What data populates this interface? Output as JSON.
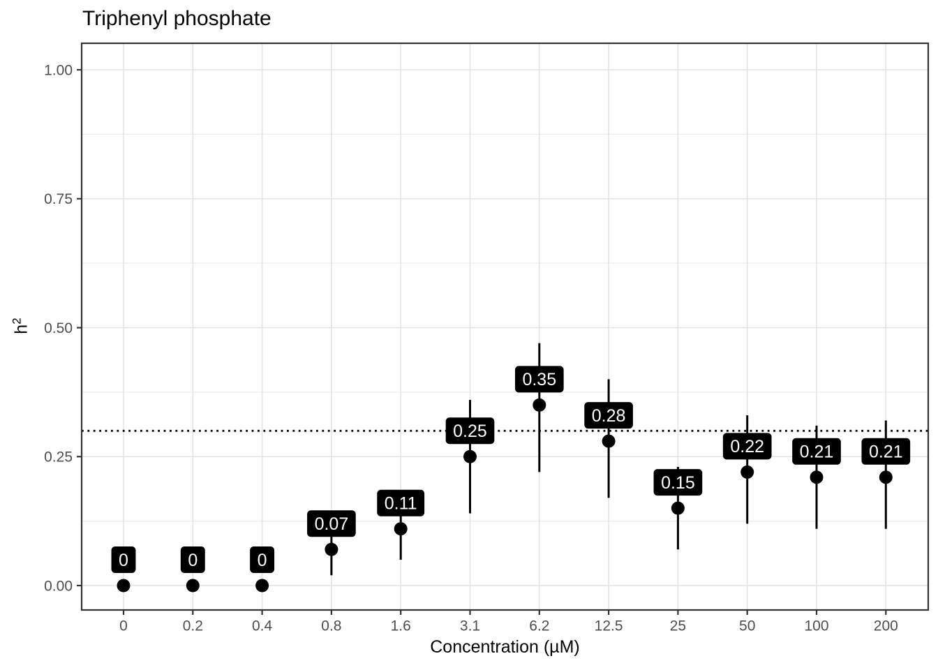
{
  "figure": {
    "title": "Triphenyl phosphate",
    "x_axis_title": "Concentration (µM)",
    "y_axis_title_base": "h",
    "y_axis_title_superscript": "2"
  },
  "colors": {
    "background": "#ffffff",
    "point": "#000000",
    "error_bar": "#000000",
    "label_box_fill": "#000000",
    "label_text": "#ffffff",
    "grid_major": "#e4e4e4",
    "grid_minor": "#ededed",
    "panel_border": "#333333",
    "tick_mark": "#333333",
    "tick_label": "#4d4d4d",
    "reference_line": "#000000"
  },
  "chart_data": {
    "type": "scatter",
    "title": "Triphenyl phosphate",
    "xlabel": "Concentration (µM)",
    "ylabel": "h²",
    "ylim": [
      0,
      1
    ],
    "grid": true,
    "legend": "none",
    "x_categories": [
      "0",
      "0.2",
      "0.4",
      "0.8",
      "1.6",
      "3.1",
      "6.2",
      "12.5",
      "25",
      "50",
      "100",
      "200"
    ],
    "y_ticks": [
      {
        "value": 0.0,
        "label": "0.00"
      },
      {
        "value": 0.25,
        "label": "0.25"
      },
      {
        "value": 0.5,
        "label": "0.50"
      },
      {
        "value": 0.75,
        "label": "0.75"
      },
      {
        "value": 1.0,
        "label": "1.00"
      }
    ],
    "y_minor_gridlines": [
      0.125,
      0.375,
      0.625,
      0.875
    ],
    "reference_line": {
      "y": 0.3,
      "style": "dotted"
    },
    "points": [
      {
        "x": "0",
        "y": 0.0,
        "lower": 0.0,
        "upper": 0.0,
        "label": "0"
      },
      {
        "x": "0.2",
        "y": 0.0,
        "lower": 0.0,
        "upper": 0.0,
        "label": "0"
      },
      {
        "x": "0.4",
        "y": 0.0,
        "lower": 0.0,
        "upper": 0.0,
        "label": "0"
      },
      {
        "x": "0.8",
        "y": 0.07,
        "lower": 0.02,
        "upper": 0.12,
        "label": "0.07"
      },
      {
        "x": "1.6",
        "y": 0.11,
        "lower": 0.05,
        "upper": 0.17,
        "label": "0.11"
      },
      {
        "x": "3.1",
        "y": 0.25,
        "lower": 0.14,
        "upper": 0.36,
        "label": "0.25"
      },
      {
        "x": "6.2",
        "y": 0.35,
        "lower": 0.22,
        "upper": 0.47,
        "label": "0.35"
      },
      {
        "x": "12.5",
        "y": 0.28,
        "lower": 0.17,
        "upper": 0.4,
        "label": "0.28"
      },
      {
        "x": "25",
        "y": 0.15,
        "lower": 0.07,
        "upper": 0.23,
        "label": "0.15"
      },
      {
        "x": "50",
        "y": 0.22,
        "lower": 0.12,
        "upper": 0.33,
        "label": "0.22"
      },
      {
        "x": "100",
        "y": 0.21,
        "lower": 0.11,
        "upper": 0.31,
        "label": "0.21"
      },
      {
        "x": "200",
        "y": 0.21,
        "lower": 0.11,
        "upper": 0.32,
        "label": "0.21"
      }
    ]
  }
}
